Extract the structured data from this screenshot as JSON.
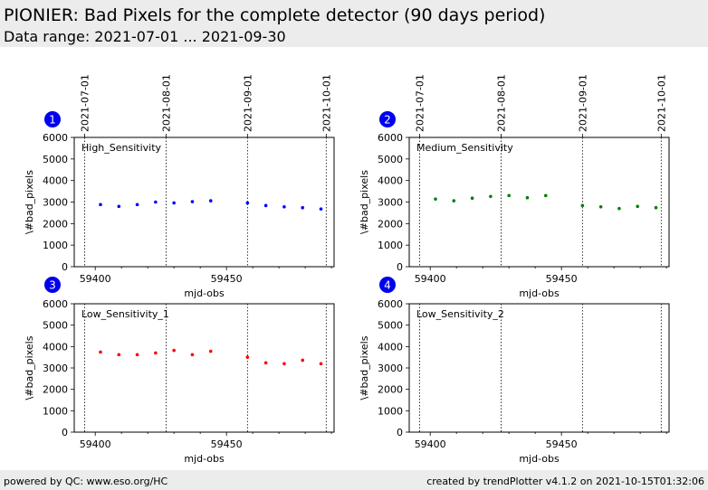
{
  "header": {
    "title": "PIONIER: Bad Pixels for the complete detector (90 days period)",
    "subtitle": "Data range: 2021-07-01 ... 2021-09-30"
  },
  "footer": {
    "left": "powered by QC: www.eso.org/HC",
    "right": "created by trendPlotter v4.1.2 on 2021-10-15T01:32:06"
  },
  "colors": {
    "marker_badge": "#0000ee",
    "axes": "#000000"
  },
  "chart_data": [
    {
      "type": "scatter",
      "panel": "1",
      "label": "High_Sensitivity",
      "xlabel": "mjd-obs",
      "ylabel": "\\#bad_pixels",
      "xlim": [
        59392,
        59491
      ],
      "ylim": [
        0,
        6000
      ],
      "xticks": [
        59400,
        59450
      ],
      "yticks": [
        0,
        1000,
        2000,
        3000,
        4000,
        5000,
        6000
      ],
      "date_markers": [
        {
          "x": 59396,
          "label": "2021-07-01"
        },
        {
          "x": 59427,
          "label": "2021-08-01"
        },
        {
          "x": 59458,
          "label": "2021-09-01"
        },
        {
          "x": 59488,
          "label": "2021-10-01"
        }
      ],
      "series": [
        {
          "color": "#0000ff",
          "x": [
            59402,
            59409,
            59416,
            59423,
            59430,
            59437,
            59444,
            59458,
            59465,
            59472,
            59479,
            59486
          ],
          "y": [
            2880,
            2800,
            2880,
            3000,
            2960,
            3020,
            3060,
            2960,
            2840,
            2780,
            2740,
            2680
          ]
        }
      ]
    },
    {
      "type": "scatter",
      "panel": "2",
      "label": "Medium_Sensitivity",
      "xlabel": "mjd-obs",
      "ylabel": "\\#bad_pixels",
      "xlim": [
        59392,
        59491
      ],
      "ylim": [
        0,
        6000
      ],
      "xticks": [
        59400,
        59450
      ],
      "yticks": [
        0,
        1000,
        2000,
        3000,
        4000,
        5000,
        6000
      ],
      "date_markers": [
        {
          "x": 59396,
          "label": "2021-07-01"
        },
        {
          "x": 59427,
          "label": "2021-08-01"
        },
        {
          "x": 59458,
          "label": "2021-09-01"
        },
        {
          "x": 59488,
          "label": "2021-10-01"
        }
      ],
      "series": [
        {
          "color": "#008000",
          "x": [
            59402,
            59409,
            59416,
            59423,
            59430,
            59437,
            59444,
            59458,
            59465,
            59472,
            59479,
            59486
          ],
          "y": [
            3140,
            3060,
            3180,
            3260,
            3300,
            3200,
            3300,
            2840,
            2780,
            2700,
            2800,
            2740
          ]
        }
      ]
    },
    {
      "type": "scatter",
      "panel": "3",
      "label": "Low_Sensitivity_1",
      "xlabel": "mjd-obs",
      "ylabel": "\\#bad_pixels",
      "xlim": [
        59392,
        59491
      ],
      "ylim": [
        0,
        6000
      ],
      "xticks": [
        59400,
        59450
      ],
      "yticks": [
        0,
        1000,
        2000,
        3000,
        4000,
        5000,
        6000
      ],
      "date_markers": [
        {
          "x": 59396,
          "label": ""
        },
        {
          "x": 59427,
          "label": ""
        },
        {
          "x": 59458,
          "label": ""
        },
        {
          "x": 59488,
          "label": ""
        }
      ],
      "series": [
        {
          "color": "#ff0000",
          "x": [
            59402,
            59409,
            59416,
            59423,
            59430,
            59437,
            59444,
            59458,
            59465,
            59472,
            59479,
            59486
          ],
          "y": [
            3740,
            3620,
            3620,
            3700,
            3820,
            3620,
            3780,
            3500,
            3240,
            3200,
            3360,
            3200
          ]
        }
      ]
    },
    {
      "type": "scatter",
      "panel": "4",
      "label": "Low_Sensitivity_2",
      "xlabel": "mjd-obs",
      "ylabel": "\\#bad_pixels",
      "xlim": [
        59392,
        59491
      ],
      "ylim": [
        0,
        6000
      ],
      "xticks": [
        59400,
        59450
      ],
      "yticks": [
        0,
        1000,
        2000,
        3000,
        4000,
        5000,
        6000
      ],
      "date_markers": [
        {
          "x": 59396,
          "label": ""
        },
        {
          "x": 59427,
          "label": ""
        },
        {
          "x": 59458,
          "label": ""
        },
        {
          "x": 59488,
          "label": ""
        }
      ],
      "series": []
    }
  ]
}
